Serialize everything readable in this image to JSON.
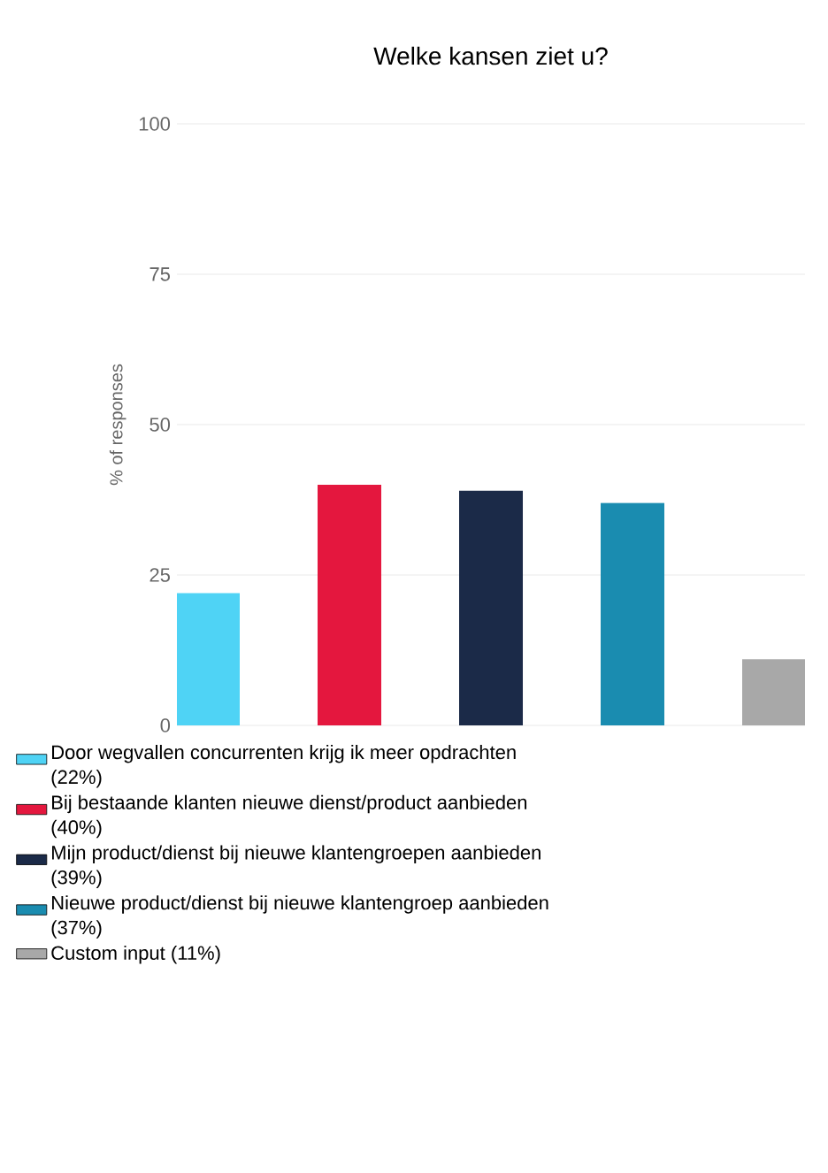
{
  "chart_data": {
    "type": "bar",
    "title": "Welke kansen ziet u?",
    "ylabel": "% of responses",
    "categories": [
      null
    ],
    "series": [
      {
        "name": "Door wegvallen concurrenten krijg ik meer opdrachten (22%)",
        "color": "#4fd3f5",
        "values": [
          22
        ]
      },
      {
        "name": "Bij bestaande klanten nieuwe dienst/product aanbieden (40%)",
        "color": "#e4173e",
        "values": [
          40
        ]
      },
      {
        "name": "Mijn product/dienst bij nieuwe klantengroepen aanbieden (39%)",
        "color": "#1b2a48",
        "values": [
          39
        ]
      },
      {
        "name": "Nieuwe product/dienst bij nieuwe klantengroep aanbieden (37%)",
        "color": "#1a8cb0",
        "values": [
          37
        ]
      },
      {
        "name": "Custom input (11%)",
        "color": "#a8a8a8",
        "values": [
          11
        ]
      }
    ],
    "ylim": [
      0,
      100
    ],
    "yticks": [
      0,
      25,
      50,
      75,
      100
    ],
    "grid": "y",
    "legend": "bottom"
  }
}
